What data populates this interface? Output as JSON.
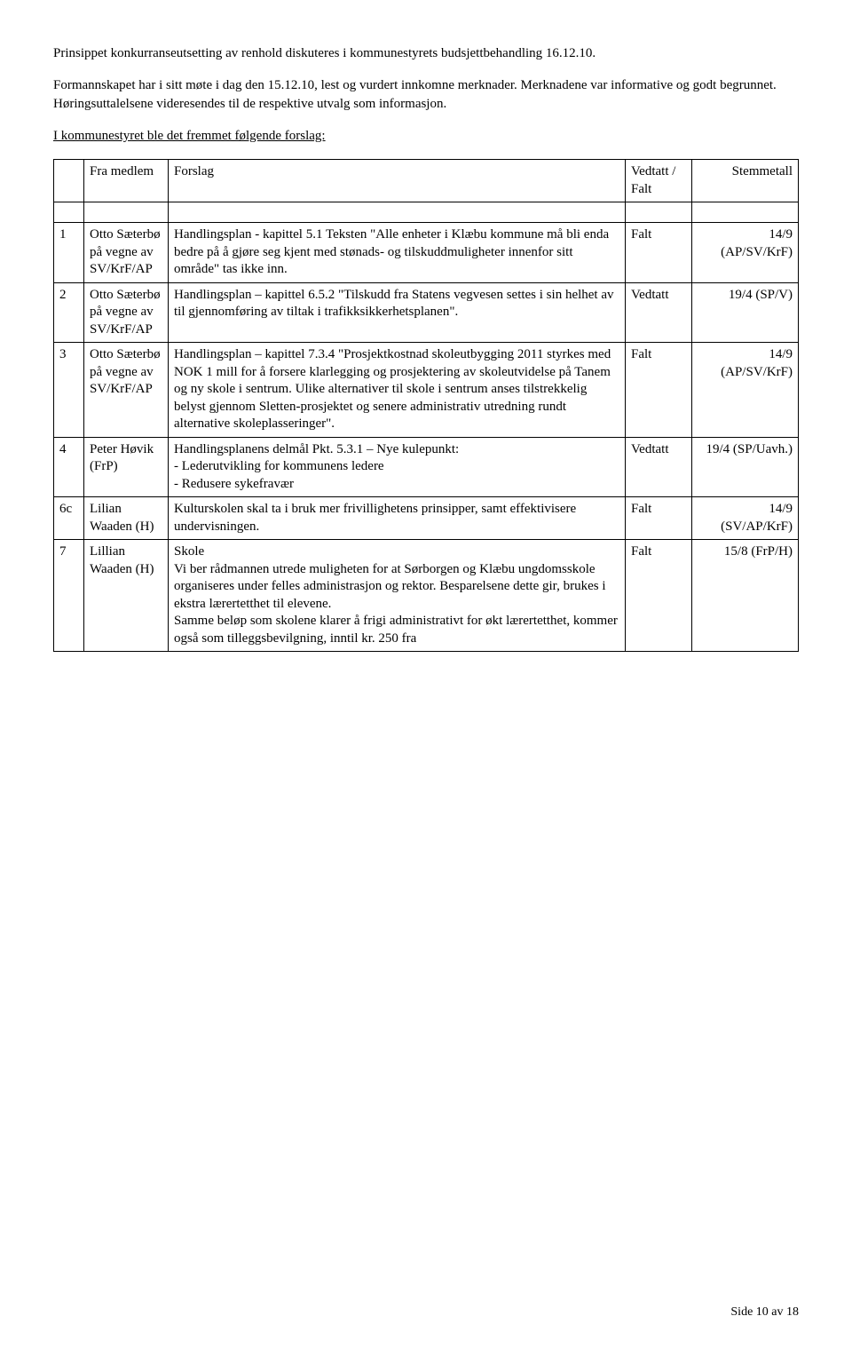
{
  "intro": {
    "p1": "Prinsippet konkurranseutsetting av renhold diskuteres i kommunestyrets budsjettbehandling 16.12.10.",
    "p2": "Formannskapet har i sitt møte i dag den 15.12.10, lest og vurdert innkomne merknader. Merknadene var informative og godt begrunnet. Høringsuttalelsene videresendes til de respektive utvalg som informasjon.",
    "p3": "I kommunestyret ble det fremmet følgende forslag:"
  },
  "header": {
    "fra": "Fra medlem",
    "forslag": "Forslag",
    "vedtatt": "Vedtatt / Falt",
    "stemmetall": "Stemmetall"
  },
  "rows": [
    {
      "idx": "1",
      "fra": "Otto Sæterbø på vegne av SV/KrF/AP",
      "forslag": "Handlingsplan - kapittel 5.1 Teksten \"Alle enheter i Klæbu kommune må bli enda bedre på å gjøre seg kjent med stønads- og tilskuddmuligheter innenfor sitt område\" tas ikke inn.",
      "vedtatt": "Falt",
      "stemme": "14/9 (AP/SV/KrF)"
    },
    {
      "idx": "2",
      "fra": "Otto Sæterbø på vegne av SV/KrF/AP",
      "forslag": "Handlingsplan – kapittel 6.5.2 \"Tilskudd fra Statens vegvesen settes i sin helhet av til gjennomføring av tiltak i trafikksikkerhetsplanen\".",
      "vedtatt": "Vedtatt",
      "stemme": "19/4 (SP/V)"
    },
    {
      "idx": "3",
      "fra": "Otto Sæterbø på vegne av SV/KrF/AP",
      "forslag": "Handlingsplan – kapittel 7.3.4 \"Prosjektkostnad skoleutbygging 2011 styrkes med NOK 1 mill for å forsere klarlegging og prosjektering av skoleutvidelse på Tanem og ny skole i sentrum. Ulike alternativer til skole i sentrum anses tilstrekkelig belyst gjennom Sletten-prosjektet og senere administrativ utredning rundt alternative skoleplasseringer\".",
      "vedtatt": "Falt",
      "stemme": "14/9 (AP/SV/KrF)"
    },
    {
      "idx": "4",
      "fra": "Peter Høvik (FrP)",
      "forslag": "Handlingsplanens delmål Pkt. 5.3.1 – Nye kulepunkt:\n- Lederutvikling for kommunens ledere\n- Redusere sykefravær",
      "vedtatt": "Vedtatt",
      "stemme": "19/4 (SP/Uavh.)"
    },
    {
      "idx": "6c",
      "fra": "Lilian Waaden (H)",
      "forslag": "Kulturskolen skal ta i bruk mer frivillighetens prinsipper, samt effektivisere undervisningen.",
      "vedtatt": "Falt",
      "stemme": "14/9 (SV/AP/KrF)"
    },
    {
      "idx": "7",
      "fra": "Lillian Waaden (H)",
      "forslag": "Skole\nVi ber rådmannen utrede muligheten for at Sørborgen og Klæbu ungdomsskole organiseres under felles administrasjon og rektor. Besparelsene dette gir, brukes i ekstra lærertetthet til elevene.\nSamme beløp som skolene klarer å frigi administrativt for økt lærertetthet, kommer også som tilleggsbevilgning, inntil kr. 250 fra",
      "vedtatt": "Falt",
      "stemme": "15/8 (FrP/H)"
    }
  ],
  "footer": "Side 10 av 18"
}
